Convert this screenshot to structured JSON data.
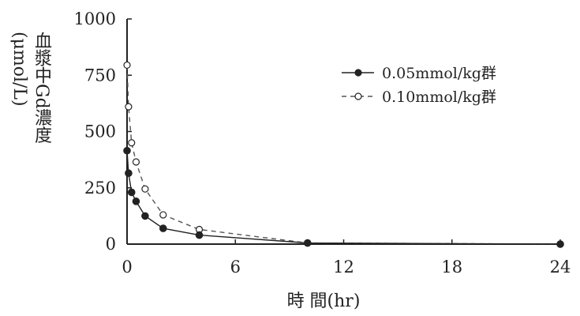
{
  "chart_data": {
    "type": "line",
    "title": "",
    "xlabel": "時 間(hr)",
    "ylabel": "血漿中Gd濃度",
    "ylabel_unit": "(μmol/L)",
    "xlim": [
      0,
      24
    ],
    "ylim": [
      0,
      1000
    ],
    "x_ticks": [
      0,
      6,
      12,
      18,
      24
    ],
    "y_ticks": [
      0,
      250,
      500,
      750,
      1000
    ],
    "grid": false,
    "legend_position": "top-right",
    "series": [
      {
        "name": "0.05mmol/kg群",
        "style": "solid",
        "marker": "filled-circle",
        "color": "#222222",
        "x": [
          0,
          0.083,
          0.25,
          0.5,
          1,
          2,
          4,
          10,
          24
        ],
        "y": [
          415,
          315,
          230,
          190,
          125,
          70,
          40,
          5,
          0
        ]
      },
      {
        "name": "0.10mmol/kg群",
        "style": "dashed",
        "marker": "open-circle",
        "color": "#555555",
        "x": [
          0,
          0.083,
          0.25,
          0.5,
          1,
          2,
          4,
          10,
          24
        ],
        "y": [
          795,
          610,
          450,
          365,
          245,
          130,
          65,
          5,
          0
        ]
      }
    ]
  }
}
